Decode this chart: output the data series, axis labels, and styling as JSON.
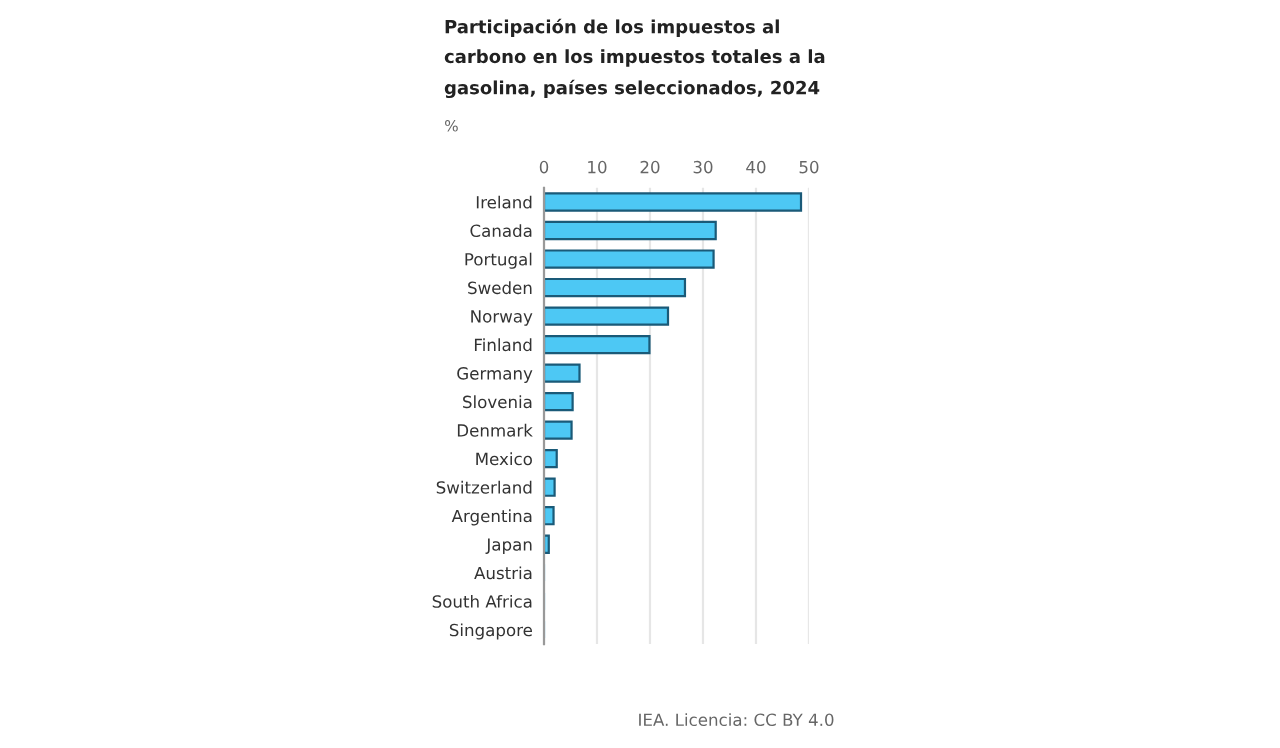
{
  "chart_data": {
    "type": "bar",
    "orientation": "horizontal",
    "title": "Participación de los impuestos al carbono en los impuestos totales a la gasolina, países seleccionados, 2024",
    "ylabel": "%",
    "categories": [
      "Ireland",
      "Canada",
      "Portugal",
      "Sweden",
      "Norway",
      "Finland",
      "Germany",
      "Slovenia",
      "Denmark",
      "Mexico",
      "Switzerland",
      "Argentina",
      "Japan",
      "Austria",
      "South Africa",
      "Singapore"
    ],
    "series": [
      {
        "color": "#4dc8f4",
        "values": [
          48.5,
          32.4,
          32.0,
          26.6,
          23.4,
          19.9,
          6.7,
          5.4,
          5.2,
          2.4,
          2.0,
          1.8,
          0.9,
          0,
          0,
          0
        ]
      }
    ],
    "xlim": [
      0,
      50
    ],
    "xticks": [
      0,
      10,
      20,
      30,
      40,
      50
    ],
    "grid": "x",
    "annotations": [
      "IEA. Licencia: CC BY 4.0"
    ]
  }
}
